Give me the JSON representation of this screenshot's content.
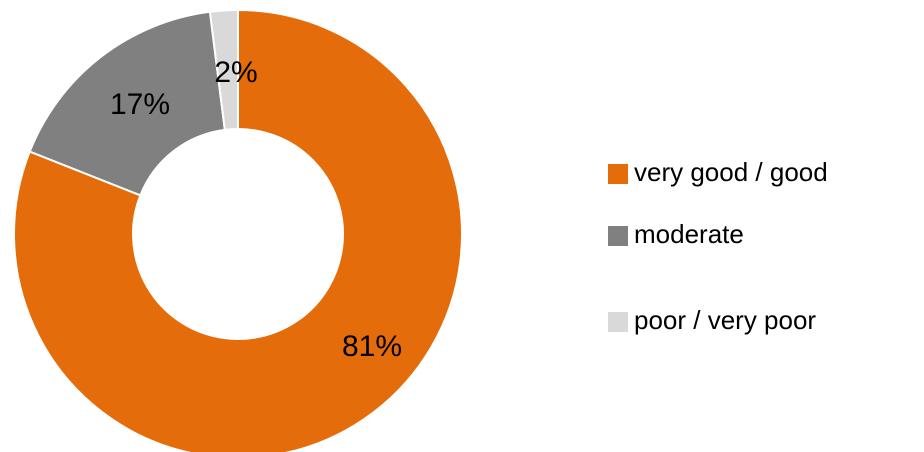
{
  "chart_data": {
    "type": "donut",
    "categories": [
      "very good / good",
      "moderate",
      "poor / very poor"
    ],
    "values": [
      81,
      17,
      2
    ],
    "value_labels": [
      "81%",
      "17%",
      "2%"
    ],
    "colors": [
      "#e46c0a",
      "#808080",
      "#d9d9d9"
    ],
    "legend": "right"
  }
}
